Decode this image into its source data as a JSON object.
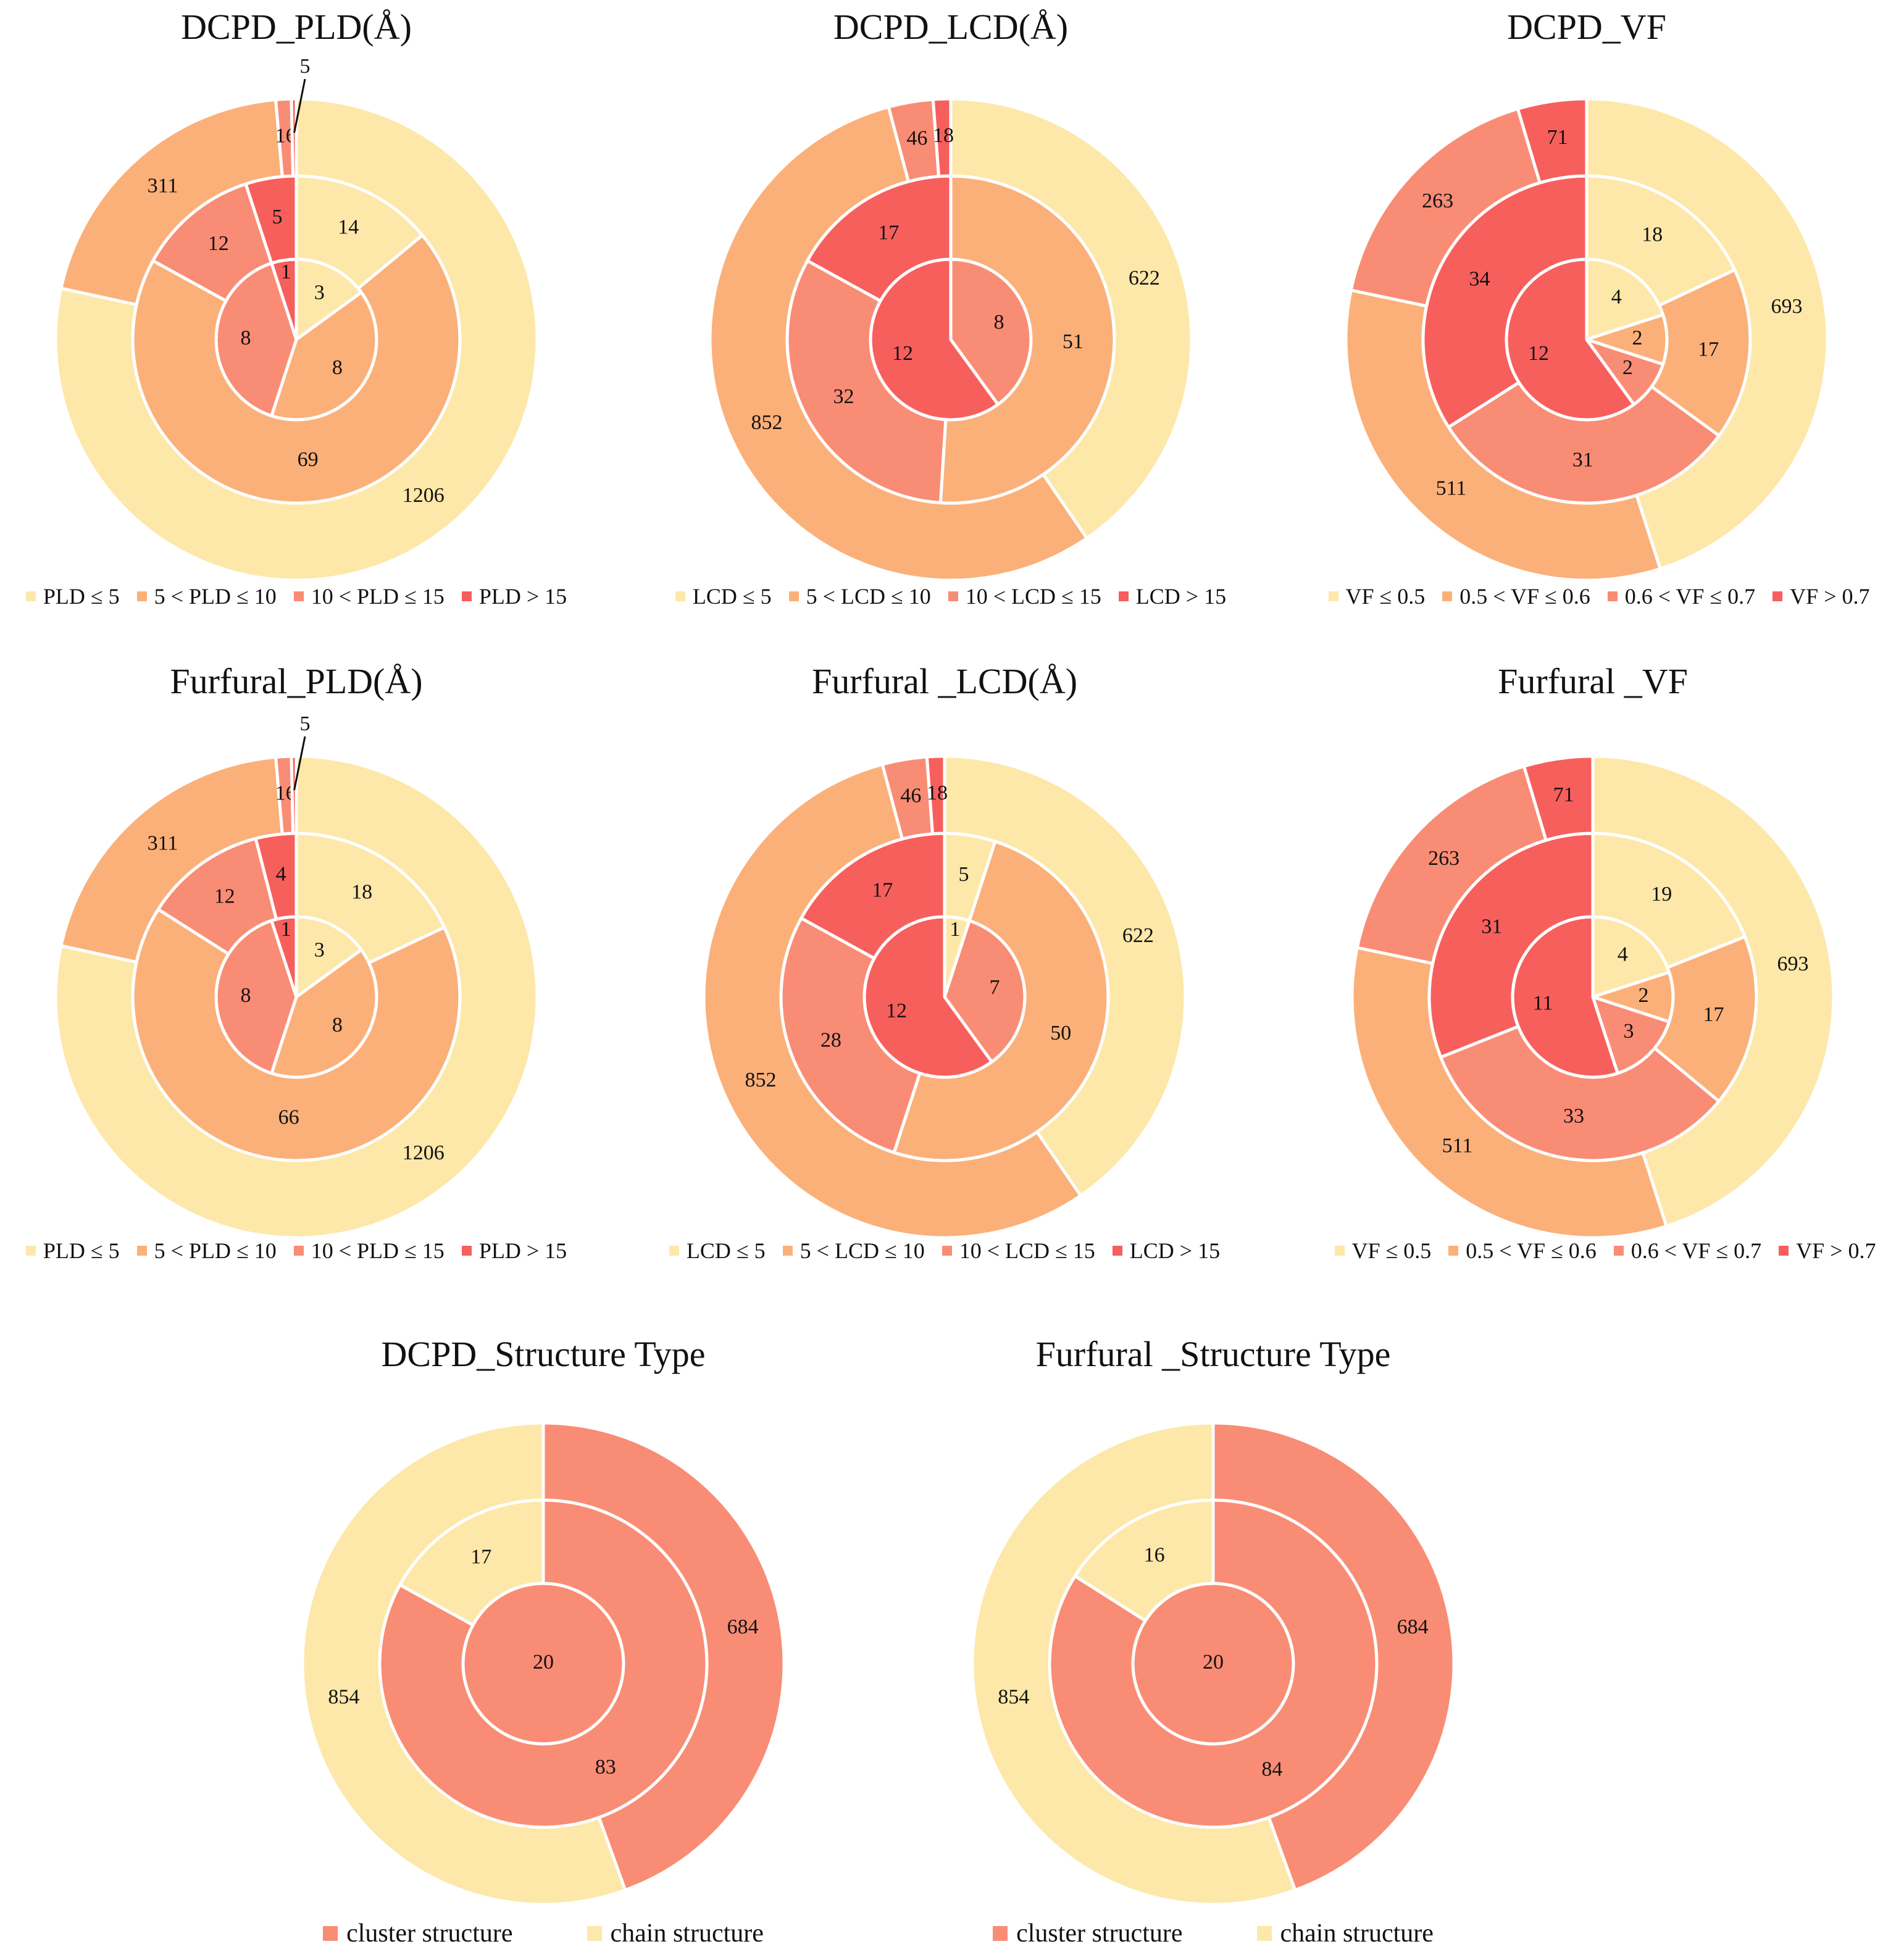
{
  "colors": {
    "level1": "#FDE8A9",
    "level2": "#FBB079",
    "level3": "#F98C75",
    "level4": "#F75F5C",
    "separator": "#ffffff"
  },
  "chart_data": [
    {
      "type": "pie",
      "variant": "nested-donut",
      "title": "DCPD_PLD(Å)",
      "categories": [
        "PLD ≤ 5",
        "5 < PLD ≤ 10",
        "10 < PLD ≤ 15",
        "PLD > 15"
      ],
      "rings": [
        {
          "ring": "inner",
          "values": [
            3,
            8,
            8,
            1
          ]
        },
        {
          "ring": "middle",
          "values": [
            14,
            69,
            12,
            5
          ]
        },
        {
          "ring": "outer",
          "values": [
            1206,
            311,
            16,
            5
          ]
        }
      ]
    },
    {
      "type": "pie",
      "variant": "nested-donut",
      "title": "DCPD_LCD(Å)",
      "categories": [
        "LCD ≤ 5",
        "5 < LCD ≤ 10",
        "10 < LCD ≤ 15",
        "LCD > 15"
      ],
      "rings": [
        {
          "ring": "inner",
          "values": [
            0,
            0,
            8,
            12
          ]
        },
        {
          "ring": "middle",
          "values": [
            0,
            51,
            32,
            17
          ]
        },
        {
          "ring": "outer",
          "values": [
            622,
            852,
            46,
            18
          ]
        }
      ]
    },
    {
      "type": "pie",
      "variant": "nested-donut",
      "title": "DCPD_VF",
      "categories": [
        "VF ≤ 0.5",
        "0.5 < VF ≤ 0.6",
        "0.6 < VF ≤ 0.7",
        "VF > 0.7"
      ],
      "rings": [
        {
          "ring": "inner",
          "values": [
            4,
            2,
            2,
            12
          ]
        },
        {
          "ring": "middle",
          "values": [
            18,
            17,
            31,
            34
          ]
        },
        {
          "ring": "outer",
          "values": [
            693,
            511,
            263,
            71
          ]
        }
      ]
    },
    {
      "type": "pie",
      "variant": "nested-donut",
      "title": "Furfural_PLD(Å)",
      "categories": [
        "PLD ≤ 5",
        "5 < PLD ≤ 10",
        "10 < PLD ≤ 15",
        "PLD > 15"
      ],
      "rings": [
        {
          "ring": "inner",
          "values": [
            3,
            8,
            8,
            1
          ]
        },
        {
          "ring": "middle",
          "values": [
            18,
            66,
            12,
            4
          ]
        },
        {
          "ring": "outer",
          "values": [
            1206,
            311,
            16,
            5
          ]
        }
      ]
    },
    {
      "type": "pie",
      "variant": "nested-donut",
      "title": "Furfural _LCD(Å)",
      "categories": [
        "LCD ≤ 5",
        "5 < LCD ≤ 10",
        "10 < LCD ≤ 15",
        "LCD > 15"
      ],
      "rings": [
        {
          "ring": "inner",
          "values": [
            1,
            0,
            7,
            12
          ]
        },
        {
          "ring": "middle",
          "values": [
            5,
            50,
            28,
            17
          ]
        },
        {
          "ring": "outer",
          "values": [
            622,
            852,
            46,
            18
          ]
        }
      ]
    },
    {
      "type": "pie",
      "variant": "nested-donut",
      "title": "Furfural _VF",
      "categories": [
        "VF ≤ 0.5",
        "0.5 < VF ≤ 0.6",
        "0.6 < VF ≤ 0.7",
        "VF > 0.7"
      ],
      "rings": [
        {
          "ring": "inner",
          "values": [
            4,
            2,
            3,
            11
          ]
        },
        {
          "ring": "middle",
          "values": [
            19,
            17,
            33,
            31
          ]
        },
        {
          "ring": "outer",
          "values": [
            693,
            511,
            263,
            71
          ]
        }
      ]
    },
    {
      "type": "pie",
      "variant": "nested-donut",
      "title": "DCPD_Structure Type",
      "categories": [
        "cluster structure",
        "chain structure"
      ],
      "rings": [
        {
          "ring": "inner",
          "values": [
            20,
            0
          ]
        },
        {
          "ring": "middle",
          "values": [
            83,
            17
          ]
        },
        {
          "ring": "outer",
          "values": [
            684,
            854
          ]
        }
      ]
    },
    {
      "type": "pie",
      "variant": "nested-donut",
      "title": "Furfural _Structure Type",
      "categories": [
        "cluster structure",
        "chain structure"
      ],
      "rings": [
        {
          "ring": "inner",
          "values": [
            20,
            0
          ]
        },
        {
          "ring": "middle",
          "values": [
            84,
            16
          ]
        },
        {
          "ring": "outer",
          "values": [
            684,
            854
          ]
        }
      ]
    }
  ]
}
